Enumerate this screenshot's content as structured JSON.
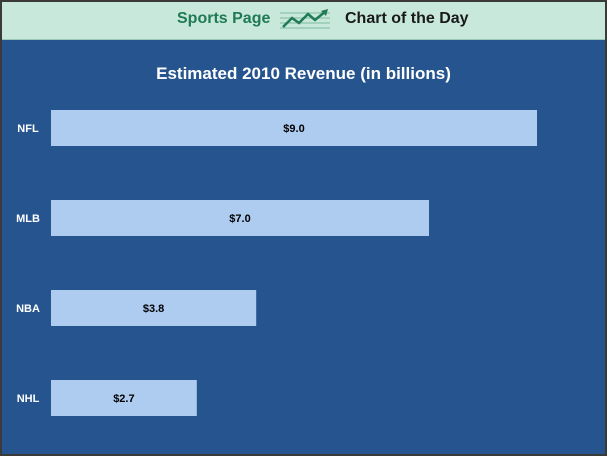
{
  "banner": {
    "brand": "Sports Page",
    "subtitle": "Chart of the Day",
    "icon": "trend-chart-icon",
    "colors": {
      "background": "#c8e8dc",
      "brand_text": "#1f7a55",
      "icon": "#1f7a55"
    }
  },
  "chart_data": {
    "type": "bar",
    "orientation": "horizontal",
    "title": "Estimated 2010 Revenue (in billions)",
    "categories": [
      "NFL",
      "MLB",
      "NBA",
      "NHL"
    ],
    "values": [
      9.0,
      7.0,
      3.8,
      2.7
    ],
    "value_labels": [
      "$9.0",
      "$7.0",
      "$3.8",
      "$2.7"
    ],
    "xlim": [
      0,
      9.0
    ],
    "grid": false,
    "legend": "none",
    "colors": {
      "background": "#26548f",
      "bar": "#aecbf0",
      "label": "#ffffff",
      "value_label": "#000000"
    }
  }
}
